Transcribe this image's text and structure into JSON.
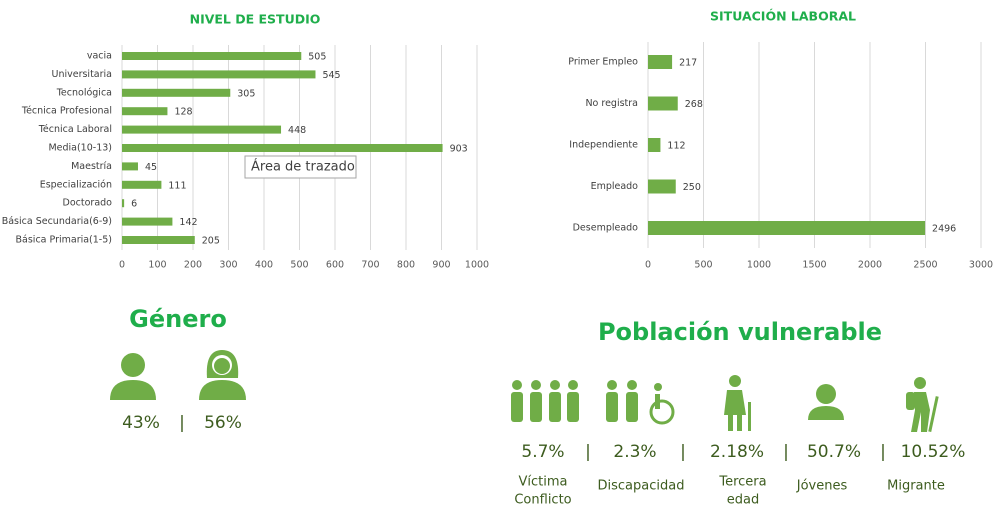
{
  "chart_data": [
    {
      "type": "bar",
      "orientation": "horizontal",
      "title": "NIVEL DE ESTUDIO",
      "categories": [
        "vacia",
        "Universitaria",
        "Tecnológica",
        "Técnica Profesional",
        "Técnica Laboral",
        "Media(10-13)",
        "Maestría",
        "Especialización",
        "Doctorado",
        "Básica Secundaria(6-9)",
        "Básica Primaria(1-5)"
      ],
      "values": [
        505,
        545,
        305,
        128,
        448,
        903,
        45,
        111,
        6,
        142,
        205
      ],
      "color": "#70ad47",
      "xlim": [
        0,
        1000
      ],
      "xticks": [
        0,
        100,
        200,
        300,
        400,
        500,
        600,
        700,
        800,
        900,
        1000
      ],
      "grid": true,
      "tooltip": "Área de trazado"
    },
    {
      "type": "bar",
      "orientation": "horizontal",
      "title": "SITUACIÓN LABORAL",
      "categories": [
        "Primer Empleo",
        "No registra",
        "Independiente",
        "Empleado",
        "Desempleado"
      ],
      "values": [
        217,
        268,
        112,
        250,
        2496
      ],
      "color": "#70ad47",
      "xlim": [
        0,
        3000
      ],
      "xticks": [
        0,
        500,
        1000,
        1500,
        2000,
        2500,
        3000
      ],
      "grid": true
    }
  ],
  "genero": {
    "title": "Género",
    "items": [
      "43%",
      "56%"
    ],
    "separator": "|"
  },
  "poblacion": {
    "title": "Población vulnerable",
    "separator": "|",
    "items": [
      {
        "value": "5.7%",
        "label": [
          "Víctima",
          "Conflicto"
        ]
      },
      {
        "value": "2.3%",
        "label": [
          "Discapacidad"
        ]
      },
      {
        "value": "2.18%",
        "label": [
          "Tercera",
          "edad"
        ]
      },
      {
        "value": "50.7%",
        "label": [
          "Jóvenes"
        ]
      },
      {
        "value": "10.52%",
        "label": [
          "Migrante"
        ]
      }
    ]
  }
}
